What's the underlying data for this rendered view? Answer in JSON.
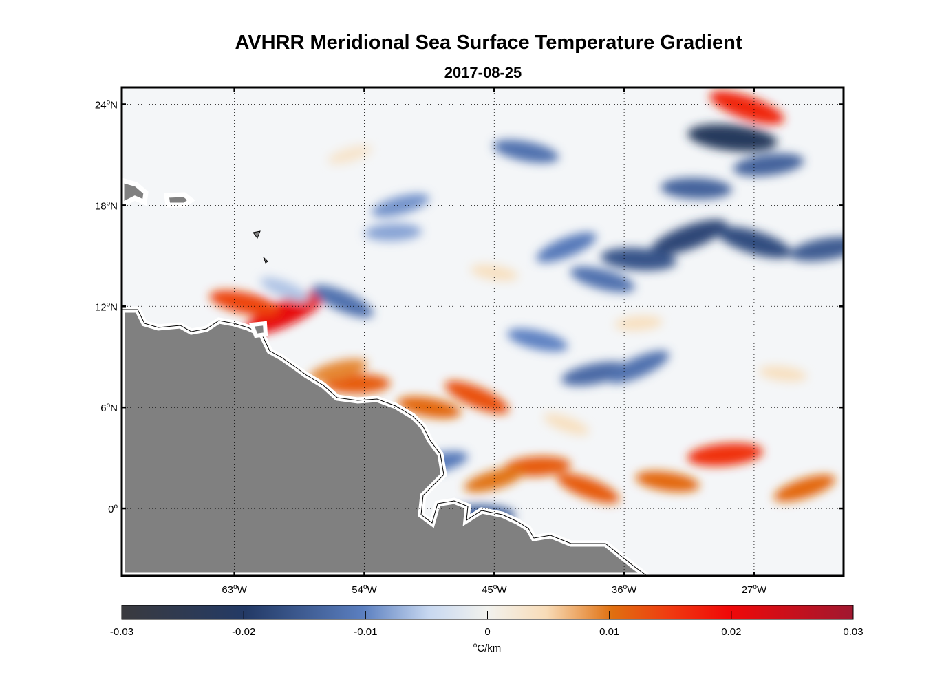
{
  "title": "AVHRR Meridional Sea Surface Temperature Gradient",
  "date": "2017-08-25",
  "map": {
    "lon_range": [
      -70.8,
      -20.8
    ],
    "lat_range": [
      -4,
      25
    ],
    "lat_ticks": [
      {
        "value": 24,
        "main": "24",
        "sup": "o",
        "suffix": "N"
      },
      {
        "value": 18,
        "main": "18",
        "sup": "o",
        "suffix": "N"
      },
      {
        "value": 12,
        "main": "12",
        "sup": "o",
        "suffix": "N"
      },
      {
        "value": 6,
        "main": "6",
        "sup": "o",
        "suffix": "N"
      },
      {
        "value": 0,
        "main": "0",
        "sup": "o",
        "suffix": ""
      }
    ],
    "lon_ticks": [
      {
        "value": -63,
        "main": "63",
        "sup": "o",
        "suffix": "W"
      },
      {
        "value": -54,
        "main": "54",
        "sup": "o",
        "suffix": "W"
      },
      {
        "value": -45,
        "main": "45",
        "sup": "o",
        "suffix": "W"
      },
      {
        "value": -36,
        "main": "36",
        "sup": "o",
        "suffix": "W"
      },
      {
        "value": -27,
        "main": "27",
        "sup": "o",
        "suffix": "W"
      }
    ],
    "land_color": "#808080",
    "ocean_background": "#f4f6f8"
  },
  "colorbar": {
    "min": -0.03,
    "max": 0.03,
    "ticks": [
      "-0.03",
      "-0.02",
      "-0.01",
      "0",
      "0.01",
      "0.02",
      "0.03"
    ],
    "unit_sup": "o",
    "unit_text": "C/km",
    "stops": [
      {
        "v": 0.0,
        "c": "#3a3a3e"
      },
      {
        "v": 0.17,
        "c": "#233a66"
      },
      {
        "v": 0.33,
        "c": "#5b7fc0"
      },
      {
        "v": 0.42,
        "c": "#c8d8f0"
      },
      {
        "v": 0.5,
        "c": "#f2f2ee"
      },
      {
        "v": 0.58,
        "c": "#f8dcb8"
      },
      {
        "v": 0.67,
        "c": "#e07010"
      },
      {
        "v": 0.75,
        "c": "#f03a10"
      },
      {
        "v": 0.83,
        "c": "#f00808"
      },
      {
        "v": 1.0,
        "c": "#a01830"
      }
    ]
  },
  "features": [
    {
      "lon": -59.5,
      "lat": 11.6,
      "val": 0.021
    },
    {
      "lon": -62.3,
      "lat": 12.2,
      "val": 0.014
    },
    {
      "lon": -54.5,
      "lat": 7.4,
      "val": 0.012
    },
    {
      "lon": -55.8,
      "lat": 8.2,
      "val": 0.009
    },
    {
      "lon": -46.2,
      "lat": 6.6,
      "val": 0.013
    },
    {
      "lon": -49.5,
      "lat": 6.0,
      "val": 0.011
    },
    {
      "lon": -42.0,
      "lat": 2.5,
      "val": 0.012
    },
    {
      "lon": -45.0,
      "lat": 1.7,
      "val": 0.01
    },
    {
      "lon": -38.5,
      "lat": 1.2,
      "val": 0.012
    },
    {
      "lon": -33.0,
      "lat": 1.6,
      "val": 0.011
    },
    {
      "lon": -29.0,
      "lat": 3.2,
      "val": 0.016
    },
    {
      "lon": -23.5,
      "lat": 1.2,
      "val": 0.011
    },
    {
      "lon": -27.5,
      "lat": 23.8,
      "val": 0.017
    },
    {
      "lon": -28.5,
      "lat": 22.0,
      "val": -0.022
    },
    {
      "lon": -26.0,
      "lat": 20.4,
      "val": -0.014
    },
    {
      "lon": -31.5,
      "lat": 16.1,
      "val": -0.018
    },
    {
      "lon": -27.0,
      "lat": 15.8,
      "val": -0.017
    },
    {
      "lon": -35.0,
      "lat": 14.8,
      "val": -0.016
    },
    {
      "lon": -22.0,
      "lat": 15.4,
      "val": -0.015
    },
    {
      "lon": -40.0,
      "lat": 15.5,
      "val": -0.011
    },
    {
      "lon": -37.5,
      "lat": 13.6,
      "val": -0.012
    },
    {
      "lon": -31.0,
      "lat": 19.0,
      "val": -0.014
    },
    {
      "lon": -38.0,
      "lat": 8.0,
      "val": -0.013
    },
    {
      "lon": -35.0,
      "lat": 8.4,
      "val": -0.012
    },
    {
      "lon": -42.0,
      "lat": 10.0,
      "val": -0.01
    },
    {
      "lon": -46.0,
      "lat": -0.4,
      "val": -0.014
    },
    {
      "lon": -49.0,
      "lat": 2.7,
      "val": -0.011
    },
    {
      "lon": -55.5,
      "lat": 12.3,
      "val": -0.012
    },
    {
      "lon": -42.8,
      "lat": 21.2,
      "val": -0.012
    },
    {
      "lon": -52.0,
      "lat": 16.4,
      "val": -0.008
    },
    {
      "lon": -51.5,
      "lat": 18.0,
      "val": -0.009
    },
    {
      "lon": -59.5,
      "lat": 13.0,
      "val": -0.006
    },
    {
      "lon": -45.0,
      "lat": 14.0,
      "val": 0.004
    },
    {
      "lon": -35.0,
      "lat": 11.0,
      "val": 0.004
    },
    {
      "lon": -55.0,
      "lat": 21.0,
      "val": 0.003
    },
    {
      "lon": -40.0,
      "lat": 5.0,
      "val": 0.004
    },
    {
      "lon": -25.0,
      "lat": 8.0,
      "val": 0.004
    }
  ]
}
